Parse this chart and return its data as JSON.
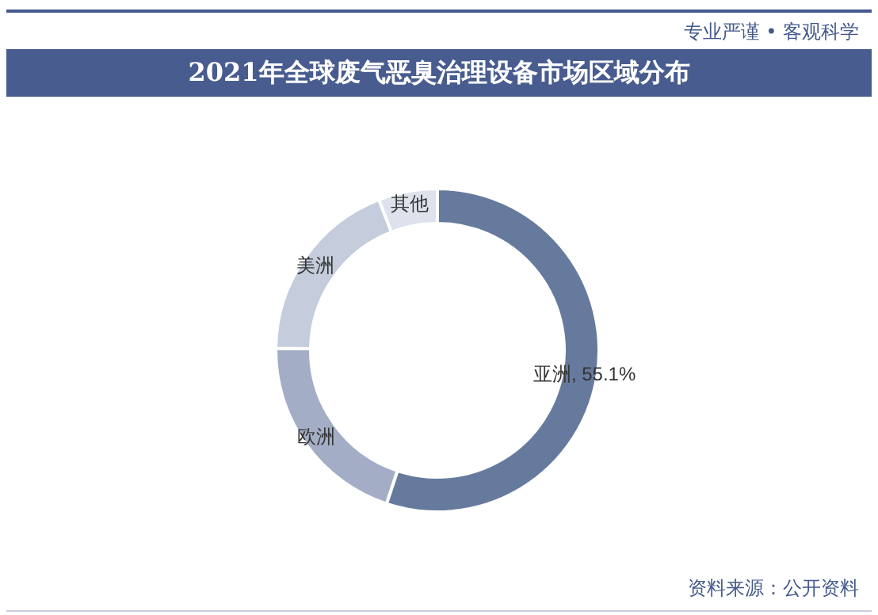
{
  "chart_data": {
    "type": "donut",
    "title": "2021年全球废气恶臭治理设备市场区域分布",
    "categories": [
      "亚洲",
      "欧洲",
      "美洲",
      "其他"
    ],
    "values": [
      55.1,
      20.1,
      18.9,
      5.9
    ],
    "value_labels": [
      "55.1%",
      null,
      null,
      null
    ],
    "colors": [
      "#667a9e",
      "#a3aec6",
      "#c5ccdc",
      "#dde2ec"
    ],
    "annotations": [
      "专业严谨 • 客观科学",
      "资料来源：公开资料"
    ],
    "legend": false
  }
}
